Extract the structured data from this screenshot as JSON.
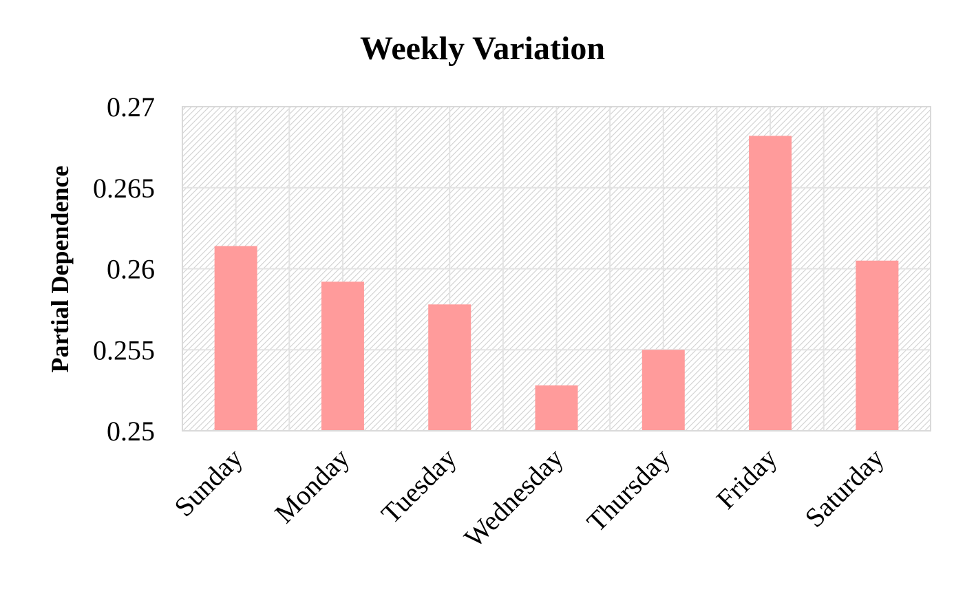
{
  "chart_data": {
    "type": "bar",
    "title": "Weekly Variation",
    "xlabel": "",
    "ylabel": "Partial Dependence",
    "categories": [
      "Sunday",
      "Monday",
      "Tuesday",
      "Wednesday",
      "Thursday",
      "Friday",
      "Saturday"
    ],
    "series": [
      {
        "values": [
          0.2614,
          0.2592,
          0.2578,
          0.2528,
          0.255,
          0.2682,
          0.2605
        ]
      }
    ],
    "ylim": [
      0.25,
      0.27
    ],
    "yticks": [
      "0.25",
      "0.255",
      "0.26",
      "0.265",
      "0.27"
    ],
    "grid": true,
    "legend": "none",
    "colors": {
      "bar": "#ff9b9b",
      "grid": "#e3e3e3",
      "hatch": "#cfcfcf",
      "axis": "#d9d9d9"
    }
  }
}
